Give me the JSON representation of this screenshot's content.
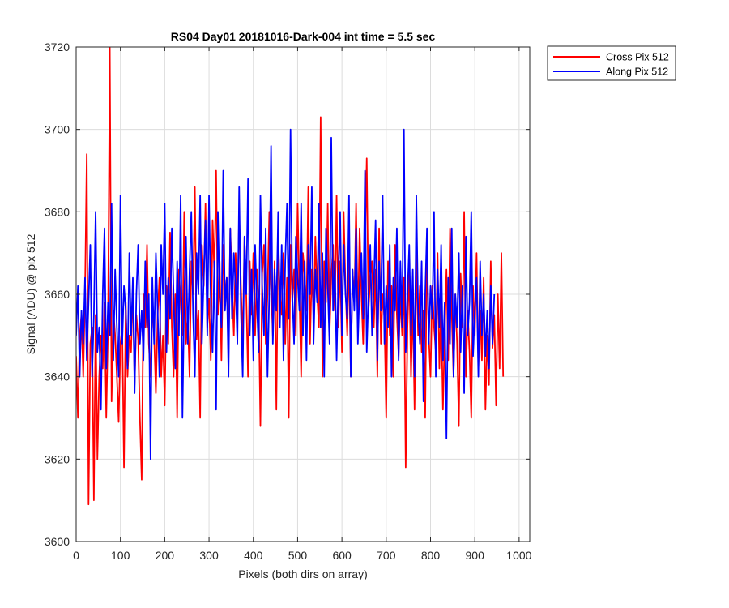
{
  "chart_data": {
    "type": "line",
    "title": "RS04 Day01 20181016-Dark-004 int time = 5.5 sec",
    "xlabel": "Pixels (both dirs on array)",
    "ylabel": "Signal (ADU) @ pix 512",
    "xlim": [
      0,
      1024
    ],
    "ylim": [
      3600,
      3720
    ],
    "xticks": [
      0,
      100,
      200,
      300,
      400,
      500,
      600,
      700,
      800,
      900,
      1000
    ],
    "yticks": [
      3600,
      3620,
      3640,
      3660,
      3680,
      3700,
      3720
    ],
    "xtick_labels": [
      "0",
      "100",
      "200",
      "300",
      "400",
      "500",
      "600",
      "700",
      "800",
      "900",
      "1000"
    ],
    "ytick_labels": [
      "3600",
      "3620",
      "3640",
      "3660",
      "3680",
      "3700",
      "3720"
    ],
    "grid": true,
    "legend_position": "outside-top-right",
    "series": [
      {
        "name": "Cross Pix 512",
        "color": "#ff0000",
        "x_start": 0,
        "x_step": 4,
        "values": [
          3645,
          3630,
          3650,
          3655,
          3640,
          3660,
          3694,
          3609,
          3648,
          3652,
          3610,
          3655,
          3620,
          3640,
          3650,
          3642,
          3658,
          3630,
          3652,
          3720,
          3634,
          3656,
          3650,
          3640,
          3629,
          3648,
          3652,
          3618,
          3658,
          3640,
          3650,
          3646,
          3662,
          3638,
          3655,
          3649,
          3630,
          3615,
          3660,
          3652,
          3672,
          3648,
          3640,
          3658,
          3650,
          3636,
          3655,
          3664,
          3640,
          3650,
          3633,
          3662,
          3648,
          3675,
          3652,
          3640,
          3660,
          3630,
          3666,
          3658,
          3650,
          3680,
          3648,
          3655,
          3640,
          3668,
          3660,
          3686,
          3649,
          3656,
          3630,
          3672,
          3662,
          3682,
          3652,
          3659,
          3644,
          3678,
          3665,
          3690,
          3655,
          3668,
          3644,
          3672,
          3660,
          3664,
          3645,
          3676,
          3662,
          3650,
          3670,
          3655,
          3680,
          3662,
          3648,
          3674,
          3660,
          3640,
          3668,
          3655,
          3670,
          3650,
          3666,
          3658,
          3628,
          3665,
          3672,
          3648,
          3660,
          3680,
          3662,
          3650,
          3668,
          3632,
          3674,
          3660,
          3655,
          3670,
          3648,
          3664,
          3630,
          3672,
          3658,
          3666,
          3650,
          3682,
          3660,
          3640,
          3670,
          3664,
          3656,
          3686,
          3648,
          3666,
          3654,
          3674,
          3660,
          3652,
          3703,
          3640,
          3668,
          3658,
          3682,
          3650,
          3664,
          3672,
          3656,
          3684,
          3652,
          3668,
          3646,
          3680,
          3662,
          3650,
          3670,
          3640,
          3666,
          3658,
          3682,
          3652,
          3676,
          3660,
          3648,
          3670,
          3693,
          3656,
          3664,
          3668,
          3652,
          3666,
          3640,
          3676,
          3648,
          3660,
          3654,
          3630,
          3668,
          3650,
          3662,
          3640,
          3672,
          3655,
          3645,
          3660,
          3650,
          3664,
          3618,
          3652,
          3666,
          3640,
          3658,
          3632,
          3670,
          3650,
          3662,
          3646,
          3656,
          3630,
          3672,
          3650,
          3640,
          3662,
          3652,
          3646,
          3670,
          3642,
          3658,
          3632,
          3650,
          3666,
          3644,
          3676,
          3655,
          3640,
          3660,
          3648,
          3628,
          3665,
          3652,
          3680,
          3640,
          3656,
          3646,
          3630,
          3662,
          3650,
          3670,
          3642,
          3656,
          3644,
          3664,
          3632,
          3650,
          3638,
          3668,
          3647,
          3655,
          3633,
          3660,
          3642,
          3670,
          3640
        ]
      },
      {
        "name": "Along Pix 512",
        "color": "#0000ff",
        "x_start": 0,
        "x_step": 4,
        "values": [
          3650,
          3662,
          3640,
          3656,
          3648,
          3664,
          3644,
          3658,
          3672,
          3640,
          3655,
          3680,
          3646,
          3652,
          3632,
          3660,
          3676,
          3642,
          3658,
          3650,
          3682,
          3644,
          3666,
          3652,
          3640,
          3684,
          3648,
          3662,
          3656,
          3642,
          3670,
          3650,
          3664,
          3636,
          3660,
          3672,
          3648,
          3656,
          3644,
          3668,
          3652,
          3660,
          3620,
          3664,
          3648,
          3670,
          3656,
          3640,
          3672,
          3660,
          3682,
          3646,
          3664,
          3654,
          3676,
          3660,
          3642,
          3668,
          3650,
          3684,
          3630,
          3660,
          3674,
          3648,
          3666,
          3680,
          3655,
          3640,
          3670,
          3660,
          3684,
          3648,
          3664,
          3678,
          3650,
          3684,
          3658,
          3646,
          3668,
          3632,
          3680,
          3660,
          3652,
          3690,
          3656,
          3664,
          3640,
          3676,
          3654,
          3670,
          3662,
          3648,
          3686,
          3656,
          3640,
          3674,
          3660,
          3688,
          3650,
          3666,
          3644,
          3672,
          3658,
          3646,
          3684,
          3662,
          3650,
          3676,
          3640,
          3660,
          3696,
          3648,
          3666,
          3656,
          3680,
          3652,
          3672,
          3644,
          3668,
          3682,
          3654,
          3700,
          3660,
          3648,
          3674,
          3664,
          3656,
          3682,
          3650,
          3668,
          3644,
          3672,
          3660,
          3686,
          3648,
          3666,
          3658,
          3682,
          3652,
          3670,
          3640,
          3676,
          3662,
          3648,
          3698,
          3656,
          3668,
          3644,
          3664,
          3680,
          3650,
          3672,
          3660,
          3654,
          3684,
          3640,
          3666,
          3656,
          3676,
          3648,
          3662,
          3670,
          3654,
          3690,
          3646,
          3660,
          3672,
          3650,
          3662,
          3678,
          3644,
          3668,
          3656,
          3684,
          3648,
          3662,
          3652,
          3672,
          3640,
          3664,
          3656,
          3676,
          3644,
          3668,
          3652,
          3700,
          3646,
          3660,
          3672,
          3650,
          3666,
          3640,
          3684,
          3656,
          3648,
          3668,
          3634,
          3660,
          3676,
          3648,
          3662,
          3654,
          3680,
          3640,
          3666,
          3652,
          3672,
          3644,
          3658,
          3625,
          3664,
          3648,
          3676,
          3640,
          3660,
          3652,
          3670,
          3646,
          3662,
          3636,
          3674,
          3650,
          3658,
          3680,
          3645,
          3656,
          3664,
          3640,
          3668,
          3650,
          3660,
          3645,
          3656,
          3642,
          3662,
          3648,
          3660
        ]
      }
    ]
  }
}
